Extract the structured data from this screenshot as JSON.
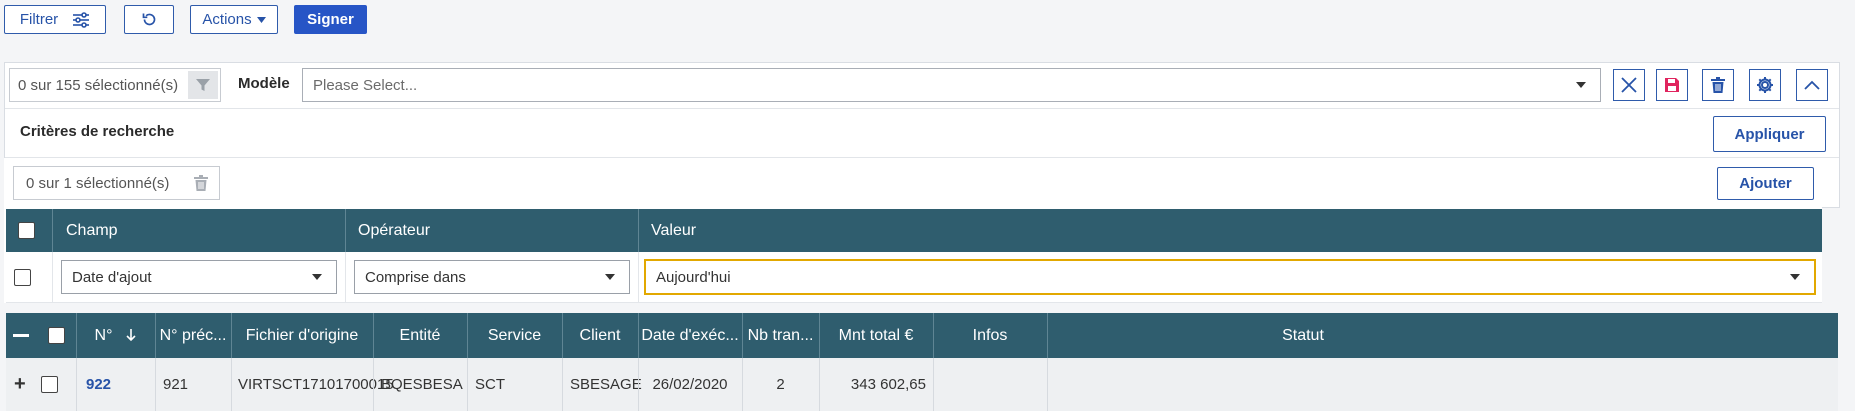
{
  "toolbar": {
    "filter_label": "Filtrer",
    "actions_label": "Actions",
    "sign_label": "Signer"
  },
  "model_bar": {
    "selected_count": "0 sur 155 sélectionné(s)",
    "model_label": "Modèle",
    "model_placeholder": "Please Select..."
  },
  "criteria": {
    "title": "Critères de recherche",
    "apply_label": "Appliquer",
    "selected_count": "0 sur 1 sélectionné(s)",
    "add_label": "Ajouter",
    "headers": {
      "field": "Champ",
      "operator": "Opérateur",
      "value": "Valeur"
    },
    "row": {
      "field": "Date d'ajout",
      "operator": "Comprise dans",
      "value": "Aujourd'hui"
    }
  },
  "grid": {
    "columns": [
      "N°",
      "N° préc...",
      "Fichier d'origine",
      "Entité",
      "Service",
      "Client",
      "Date d'exéc...",
      "Nb tran...",
      "Mnt total €",
      "Infos",
      "Statut"
    ],
    "rows": [
      {
        "expand": "+",
        "number": "922",
        "prev_number": "921",
        "origin_file": "VIRTSCT17101700015",
        "entity": "BQESBESA",
        "service": "SCT",
        "client": "SBESAGE",
        "exec_date": "26/02/2020",
        "nb_transactions": "2",
        "total_amount": "343 602,65",
        "infos": "",
        "status": ""
      }
    ]
  },
  "colors": {
    "header_bg": "#2f5d6e",
    "primary": "#2755c6",
    "link": "#2753a8",
    "save_icon": "#e0245e",
    "focus_border": "#e2a800"
  },
  "icons": [
    "sliders-icon",
    "refresh-icon",
    "caret-down-icon",
    "funnel-icon",
    "close-icon",
    "save-icon",
    "trash-icon",
    "gear-icon",
    "chevron-up-icon",
    "sort-down-icon",
    "collapse-icon",
    "expand-icon"
  ]
}
